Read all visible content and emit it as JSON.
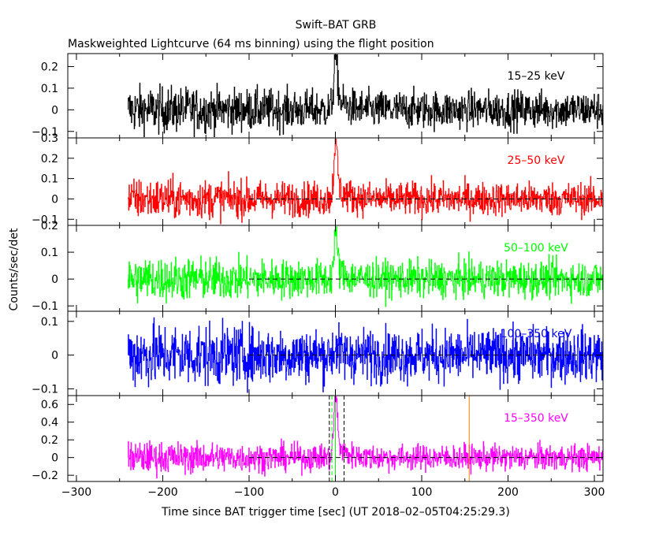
{
  "chart_data": {
    "type": "line",
    "title": "Swift–BAT GRB",
    "subtitle": "Maskweighted Lightcurve (64 ms binning) using the flight position",
    "xlabel": "Time since BAT trigger time [sec] (UT 2018–02–05T04:25:29.3)",
    "ylabel": "Counts/sec/det",
    "xlim": [
      -310,
      310
    ],
    "x_ticks": [
      -300,
      -200,
      -100,
      0,
      100,
      200,
      300
    ],
    "x_tick_labels": [
      "−300",
      "−200",
      "−100",
      "0",
      "100",
      "200",
      "300"
    ],
    "data_start": -240,
    "data_end": 310,
    "dashed_zero_start": -100,
    "colors": {
      "black": "#000000",
      "red": "#ff0000",
      "green": "#00ff00",
      "blue": "#0000ff",
      "magenta": "#ff00ff",
      "orange": "#ff8000"
    },
    "panels": [
      {
        "name": "15–25 keV",
        "color": "#000000",
        "ylim": [
          -0.13,
          0.26
        ],
        "yticks": [
          -0.1,
          0,
          0.1,
          0.2
        ],
        "ytick_labels": [
          "−0.1",
          "0",
          "0.1",
          "0.2"
        ],
        "noise": 0.045,
        "burst_peak": 0.2,
        "dashed_zero": false
      },
      {
        "name": "25–50 keV",
        "color": "#ff0000",
        "ylim": [
          -0.13,
          0.3
        ],
        "yticks": [
          -0.1,
          0,
          0.1,
          0.2,
          0.3
        ],
        "ytick_labels": [
          "−0.1",
          "0",
          "0.1",
          "0.2",
          "0.3"
        ],
        "noise": 0.042,
        "burst_peak": 0.22,
        "dashed_zero": true
      },
      {
        "name": "50–100 keV",
        "color": "#00ff00",
        "ylim": [
          -0.12,
          0.2
        ],
        "yticks": [
          -0.1,
          0,
          0.1,
          0.2
        ],
        "ytick_labels": [
          "−0.1",
          "0",
          "0.1",
          "0.2"
        ],
        "noise": 0.035,
        "burst_peak": 0.13,
        "dashed_zero": true
      },
      {
        "name": "100–350 keV",
        "color": "#0000ff",
        "ylim": [
          -0.12,
          0.13
        ],
        "yticks": [
          -0.1,
          0,
          0.1
        ],
        "ytick_labels": [
          "−0.1",
          "0",
          "0.1"
        ],
        "noise": 0.04,
        "burst_peak": 0.02,
        "dashed_zero": true
      },
      {
        "name": "15–350 keV",
        "color": "#ff00ff",
        "ylim": [
          -0.27,
          0.7
        ],
        "yticks": [
          -0.2,
          0,
          0.2,
          0.4,
          0.6
        ],
        "ytick_labels": [
          "−0.2",
          "0",
          "0.2",
          "0.4",
          "0.6"
        ],
        "noise": 0.075,
        "burst_peak": 0.55,
        "dashed_zero": true,
        "markers": [
          {
            "x": -7,
            "color": "#000000",
            "style": "dashed"
          },
          {
            "x": 10,
            "color": "#000000",
            "style": "dashed"
          },
          {
            "x": -4,
            "color": "#00ff00",
            "style": "dashed"
          },
          {
            "x": 0,
            "color": "#00ff00",
            "style": "solid"
          },
          {
            "x": 155,
            "color": "#ff8000",
            "style": "solid"
          }
        ]
      }
    ]
  }
}
